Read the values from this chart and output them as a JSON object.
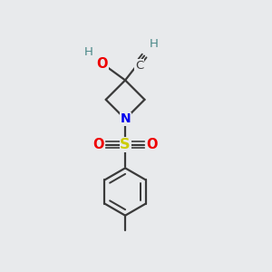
{
  "bg_color": "#e8eaec",
  "atom_colors": {
    "C": "#3a3a3a",
    "N": "#0000ee",
    "O": "#ee0000",
    "S": "#cccc00",
    "H": "#4a8888"
  },
  "bond_color": "#3a3a3a",
  "bond_width": 1.6,
  "fig_size": [
    3.0,
    3.0
  ],
  "dpi": 100
}
